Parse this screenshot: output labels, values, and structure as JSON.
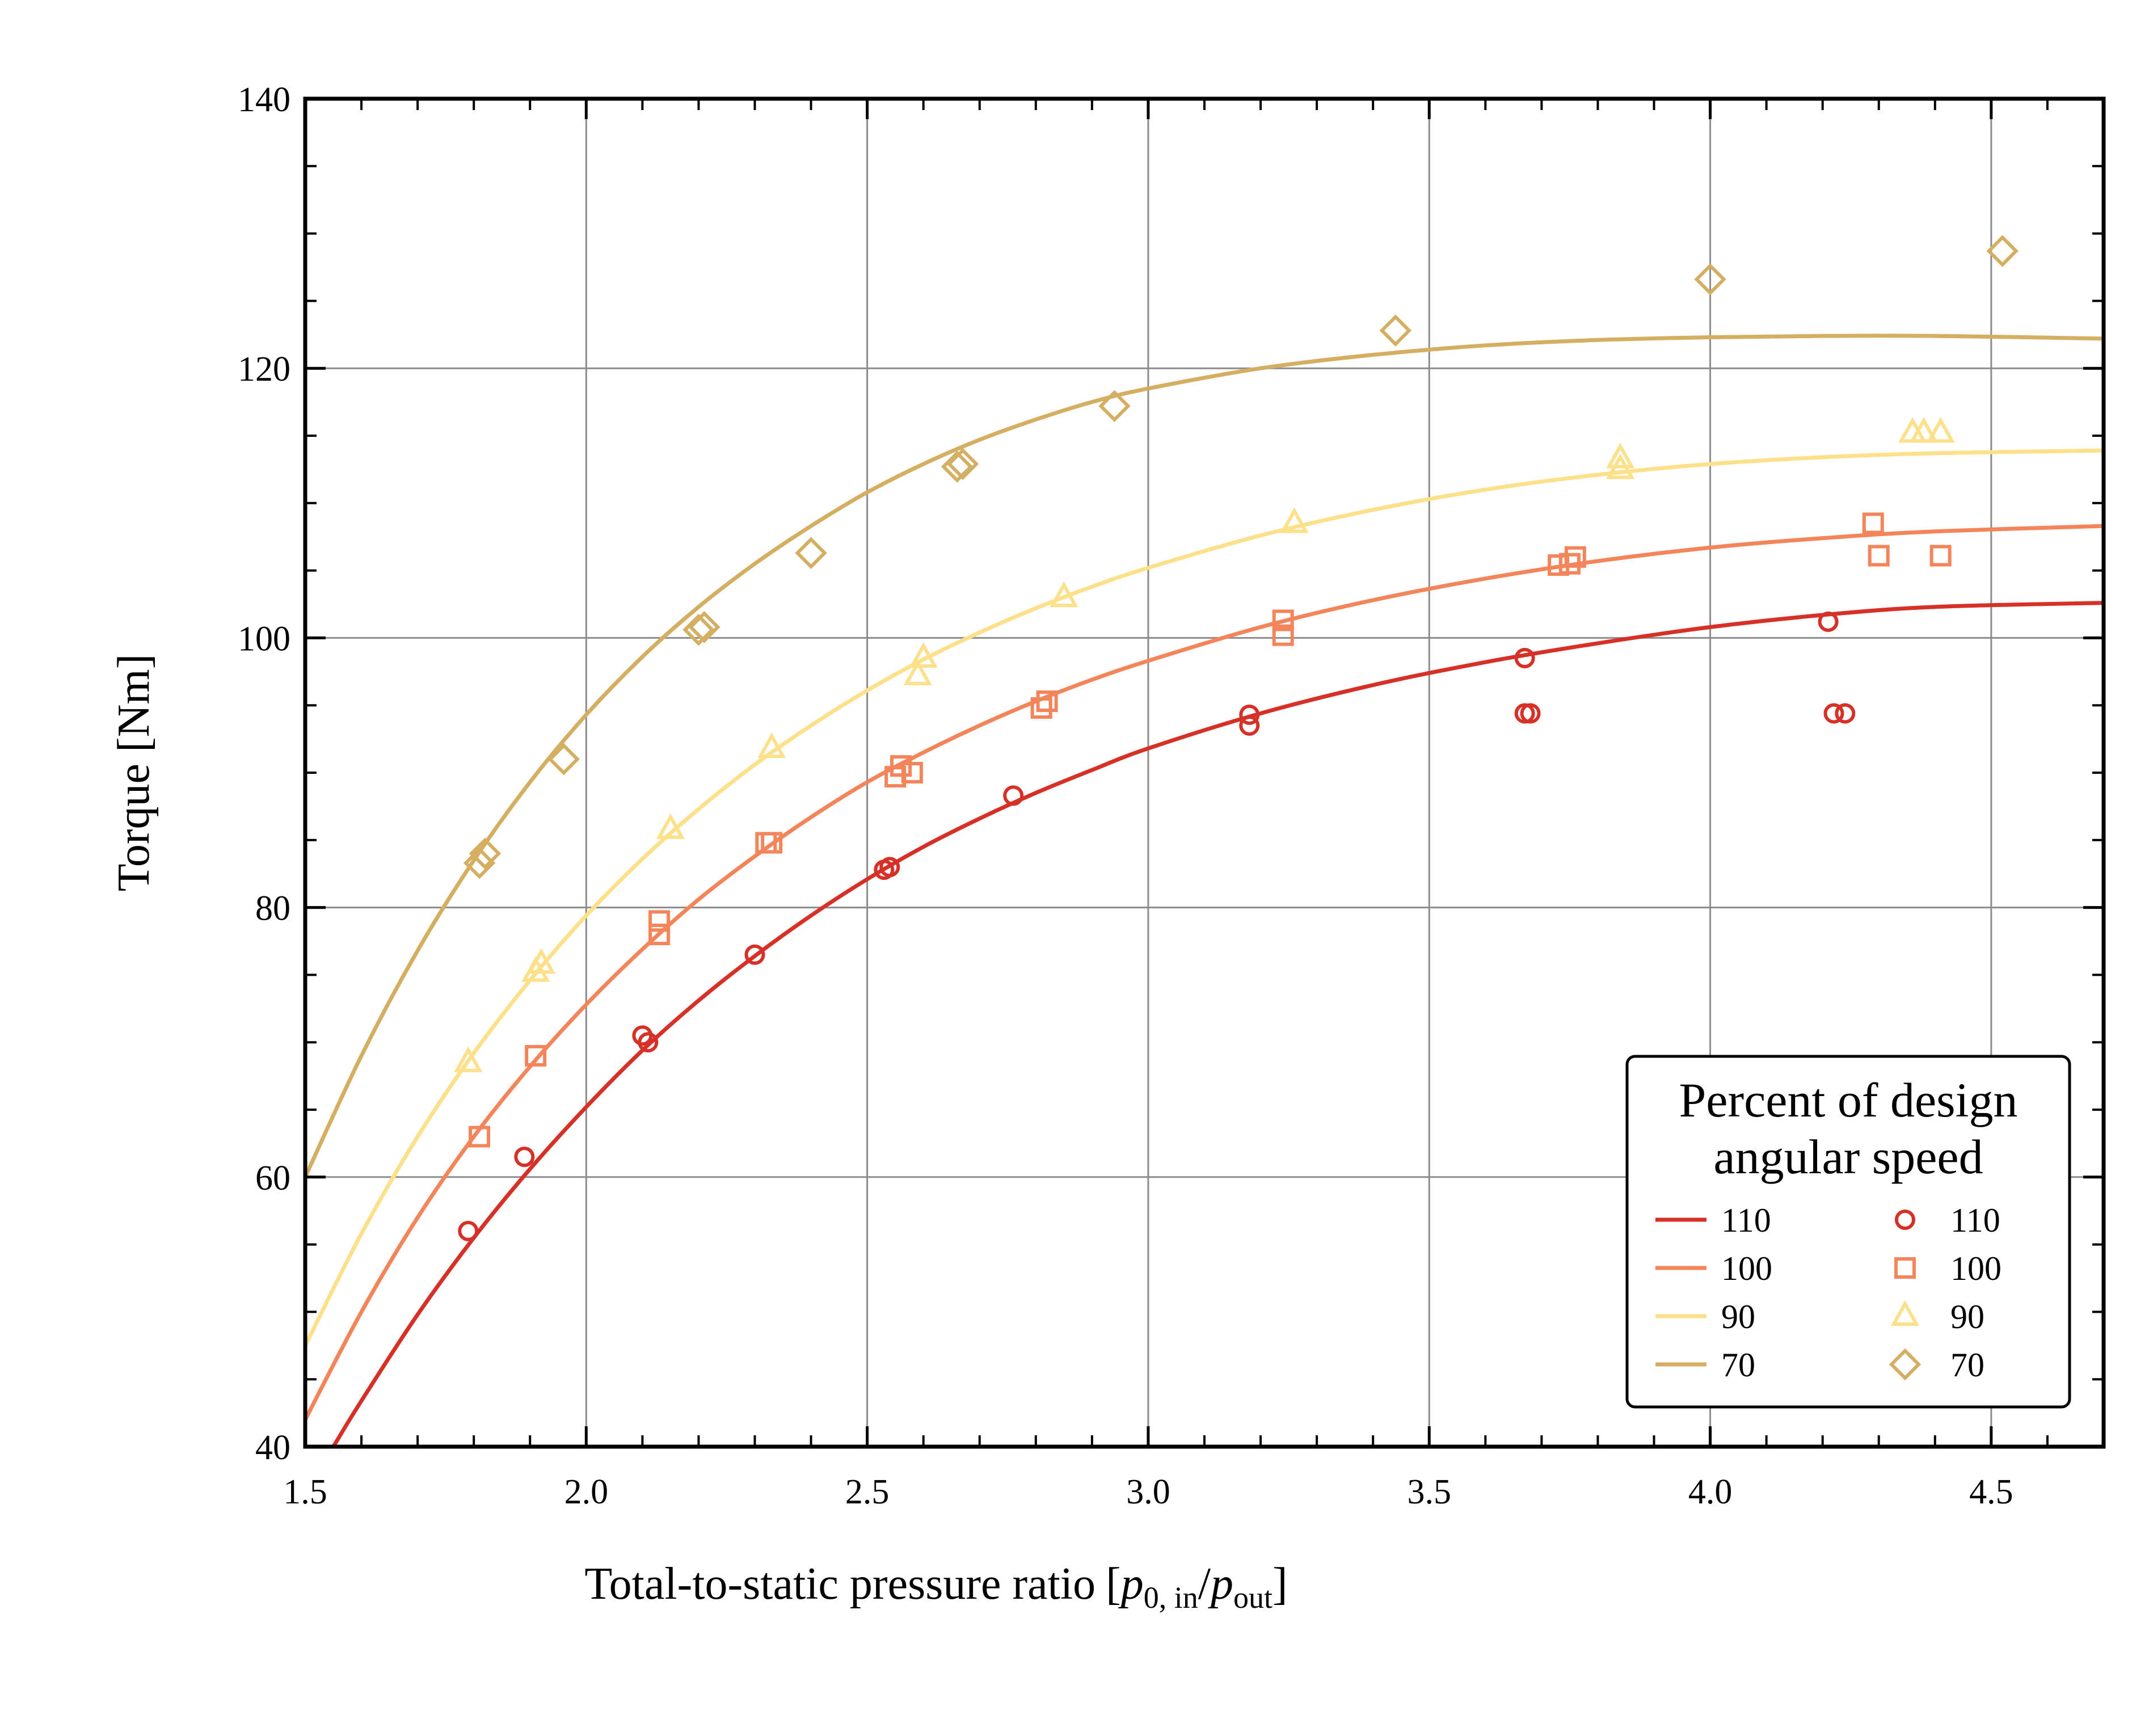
{
  "chart_data": {
    "type": "scatter",
    "xlabel": "Total-to-static pressure ratio",
    "xlabel_bracket_open": "[",
    "xlabel_p": "p",
    "xlabel_sub1": "0, in",
    "xlabel_slash": "/",
    "xlabel_p2": "p",
    "xlabel_sub2": "out",
    "xlabel_bracket_close": "]",
    "ylabel": "Torque [Nm]",
    "xlim": [
      1.5,
      4.7
    ],
    "ylim": [
      40,
      140
    ],
    "xticks": [
      "1.5",
      "2.0",
      "2.5",
      "3.0",
      "3.5",
      "4.0",
      "4.5"
    ],
    "yticks": [
      "40",
      "60",
      "80",
      "100",
      "120",
      "140"
    ],
    "grid": true,
    "legend": {
      "title_line1": "Percent of design",
      "title_line2": "angular speed",
      "placement": "lower-right",
      "lines": [
        "110",
        "100",
        "90",
        "70"
      ],
      "markers": [
        "110",
        "100",
        "90",
        "70"
      ]
    },
    "colors": {
      "110": "#d73027",
      "100": "#f4845a",
      "90": "#fde08a",
      "70": "#d4af62"
    },
    "series": [
      {
        "name": "110",
        "kind": "line",
        "color": "#d73027",
        "x": [
          1.55,
          1.6,
          1.7,
          1.8,
          1.9,
          2.0,
          2.1,
          2.2,
          2.3,
          2.4,
          2.5,
          2.6,
          2.7,
          2.8,
          2.9,
          3.0,
          3.2,
          3.4,
          3.6,
          3.8,
          4.0,
          4.2,
          4.4,
          4.7
        ],
        "y": [
          40.0,
          43.4,
          49.8,
          55.5,
          60.6,
          65.2,
          69.4,
          73.1,
          76.4,
          79.4,
          82.1,
          84.5,
          86.6,
          88.5,
          90.2,
          91.8,
          94.4,
          96.5,
          98.2,
          99.6,
          100.8,
          101.7,
          102.3,
          102.6
        ]
      },
      {
        "name": "100",
        "kind": "line",
        "color": "#f4845a",
        "x": [
          1.5,
          1.6,
          1.7,
          1.8,
          1.9,
          2.0,
          2.1,
          2.2,
          2.3,
          2.4,
          2.5,
          2.6,
          2.7,
          2.8,
          2.9,
          3.0,
          3.2,
          3.4,
          3.6,
          3.8,
          4.0,
          4.2,
          4.4,
          4.7
        ],
        "y": [
          42.0,
          50.0,
          57.0,
          63.0,
          68.2,
          72.8,
          76.9,
          80.6,
          83.8,
          86.7,
          89.3,
          91.5,
          93.5,
          95.3,
          96.9,
          98.3,
          100.8,
          102.8,
          104.4,
          105.7,
          106.7,
          107.4,
          107.9,
          108.3
        ]
      },
      {
        "name": "90",
        "kind": "line",
        "color": "#fde08a",
        "x": [
          1.5,
          1.6,
          1.7,
          1.8,
          1.9,
          2.0,
          2.1,
          2.2,
          2.3,
          2.4,
          2.5,
          2.6,
          2.7,
          2.8,
          2.9,
          3.0,
          3.2,
          3.4,
          3.6,
          3.8,
          4.0,
          4.2,
          4.4,
          4.7
        ],
        "y": [
          47.5,
          55.8,
          63.0,
          69.2,
          74.6,
          79.4,
          83.6,
          87.3,
          90.6,
          93.5,
          96.1,
          98.4,
          100.4,
          102.2,
          103.8,
          105.2,
          107.6,
          109.5,
          111.0,
          112.1,
          112.9,
          113.4,
          113.7,
          113.9
        ]
      },
      {
        "name": "70",
        "kind": "line",
        "color": "#d4af62",
        "x": [
          1.5,
          1.6,
          1.7,
          1.8,
          1.9,
          2.0,
          2.1,
          2.2,
          2.3,
          2.4,
          2.5,
          2.6,
          2.7,
          2.8,
          2.9,
          3.0,
          3.2,
          3.4,
          3.6,
          3.8,
          4.0,
          4.2,
          4.4,
          4.7
        ],
        "y": [
          60.0,
          69.0,
          76.8,
          83.5,
          89.3,
          94.3,
          98.6,
          102.3,
          105.5,
          108.3,
          110.8,
          112.9,
          114.7,
          116.2,
          117.5,
          118.5,
          120.0,
          121.0,
          121.7,
          122.1,
          122.3,
          122.4,
          122.4,
          122.2
        ]
      },
      {
        "name": "110",
        "kind": "marker",
        "marker": "circle",
        "color": "#d73027",
        "x": [
          1.79,
          1.89,
          2.1,
          2.11,
          2.3,
          2.53,
          2.54,
          2.76,
          3.18,
          3.18,
          3.67,
          3.67,
          3.68,
          4.21,
          4.22,
          4.24
        ],
        "y": [
          56,
          61.5,
          70.5,
          70,
          76.5,
          82.8,
          83,
          88.3,
          93.5,
          94.3,
          98.5,
          94.4,
          94.4,
          101.2,
          94.4,
          94.4
        ]
      },
      {
        "name": "100",
        "kind": "marker",
        "marker": "square",
        "color": "#f4845a",
        "x": [
          1.81,
          1.91,
          2.13,
          2.13,
          2.32,
          2.33,
          2.55,
          2.56,
          2.58,
          2.81,
          2.82,
          3.24,
          3.24,
          3.73,
          3.75,
          3.76,
          4.29,
          4.3,
          4.41
        ],
        "y": [
          63,
          69,
          78,
          79,
          84.8,
          84.8,
          89.7,
          90.5,
          90,
          94.8,
          95.3,
          101.3,
          100.2,
          105.4,
          105.5,
          106,
          108.5,
          106.1,
          106.1
        ]
      },
      {
        "name": "90",
        "kind": "marker",
        "marker": "triangle",
        "color": "#fde08a",
        "x": [
          1.79,
          1.91,
          1.92,
          2.15,
          2.33,
          2.59,
          2.6,
          2.85,
          3.26,
          3.84,
          3.84,
          4.36,
          4.38,
          4.41
        ],
        "y": [
          68.5,
          75.2,
          75.8,
          85.8,
          91.8,
          97.2,
          98.5,
          103,
          108.5,
          112.5,
          113.3,
          115.2,
          115.2,
          115.2
        ]
      },
      {
        "name": "70",
        "kind": "marker",
        "marker": "diamond",
        "color": "#d4af62",
        "x": [
          1.81,
          1.82,
          1.96,
          2.2,
          2.21,
          2.4,
          2.66,
          2.67,
          2.94,
          3.44,
          4.0,
          4.52
        ],
        "y": [
          83.3,
          84,
          91,
          100.6,
          100.8,
          106.3,
          112.7,
          112.9,
          117.2,
          122.8,
          126.6,
          128.7
        ]
      }
    ]
  }
}
